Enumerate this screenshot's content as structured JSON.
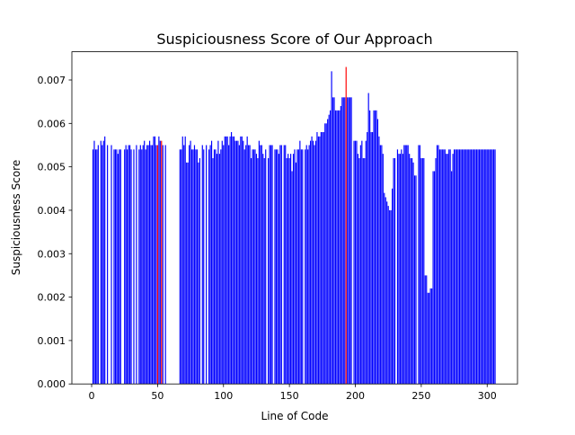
{
  "chart_data": {
    "type": "bar",
    "title": "Suspiciousness Score of Our Approach",
    "xlabel": "Line of Code",
    "ylabel": "Suspiciousness Score",
    "xlim": [
      -15,
      323
    ],
    "ylim": [
      0,
      0.00765
    ],
    "xticks": [
      0,
      50,
      100,
      150,
      200,
      250,
      300
    ],
    "xtick_labels": [
      "0",
      "50",
      "100",
      "150",
      "200",
      "250",
      "300"
    ],
    "yticks": [
      0,
      0.001,
      0.002,
      0.003,
      0.004,
      0.005,
      0.006,
      0.007
    ],
    "ytick_labels": [
      "0.000",
      "0.001",
      "0.002",
      "0.003",
      "0.004",
      "0.005",
      "0.006",
      "0.007"
    ],
    "bar_width": 0.8,
    "colors": {
      "normal": "#0000ff",
      "highlight": "#ff0000",
      "axis": "#000000"
    },
    "highlighted_lines": [
      50,
      53,
      193
    ],
    "x": [
      1,
      2,
      3,
      4,
      5,
      7,
      8,
      9,
      10,
      12,
      15,
      17,
      18,
      19,
      20,
      21,
      22,
      25,
      26,
      27,
      28,
      29,
      30,
      32,
      34,
      36,
      37,
      38,
      39,
      40,
      41,
      42,
      43,
      44,
      45,
      46,
      47,
      48,
      49,
      50,
      51,
      52,
      53,
      54,
      56,
      67,
      68,
      69,
      70,
      71,
      72,
      73,
      74,
      75,
      76,
      77,
      78,
      79,
      80,
      81,
      82,
      84,
      85,
      87,
      89,
      90,
      91,
      92,
      93,
      94,
      95,
      96,
      97,
      98,
      99,
      100,
      101,
      102,
      103,
      104,
      105,
      106,
      107,
      108,
      109,
      110,
      111,
      112,
      113,
      114,
      115,
      116,
      117,
      118,
      119,
      120,
      121,
      122,
      123,
      124,
      125,
      126,
      127,
      128,
      129,
      130,
      131,
      132,
      134,
      135,
      136,
      137,
      139,
      140,
      141,
      142,
      143,
      144,
      146,
      147,
      148,
      149,
      150,
      151,
      152,
      153,
      154,
      155,
      156,
      157,
      158,
      159,
      160,
      162,
      163,
      164,
      165,
      166,
      167,
      168,
      169,
      170,
      171,
      172,
      173,
      174,
      175,
      176,
      177,
      178,
      179,
      180,
      181,
      182,
      183,
      184,
      185,
      186,
      187,
      188,
      189,
      190,
      191,
      192,
      193,
      194,
      195,
      196,
      197,
      199,
      200,
      201,
      202,
      203,
      204,
      205,
      206,
      207,
      208,
      209,
      210,
      211,
      212,
      213,
      214,
      215,
      216,
      217,
      218,
      219,
      220,
      221,
      222,
      223,
      224,
      225,
      226,
      227,
      228,
      229,
      230,
      232,
      233,
      234,
      235,
      236,
      237,
      238,
      239,
      240,
      241,
      242,
      243,
      244,
      245,
      246,
      248,
      249,
      250,
      251,
      252,
      253,
      254,
      255,
      256,
      257,
      258,
      259,
      260,
      261,
      262,
      263,
      264,
      265,
      266,
      267,
      268,
      269,
      270,
      271,
      272,
      273,
      274,
      275,
      276,
      277,
      278,
      279,
      280,
      281,
      282,
      283,
      284,
      285,
      286,
      287,
      288,
      289,
      290,
      291,
      292,
      293,
      294,
      295,
      296,
      297,
      298,
      299,
      300,
      301,
      302,
      303,
      304,
      305,
      306
    ],
    "values": [
      0.0054,
      0.0056,
      0.0054,
      0.0054,
      0.0055,
      0.0056,
      0.0055,
      0.0056,
      0.0057,
      0.0055,
      0.0055,
      0.0054,
      0.0054,
      0.0054,
      0.0053,
      0.0054,
      0.0054,
      0.0054,
      0.0055,
      0.0054,
      0.0055,
      0.0055,
      0.0054,
      0.0054,
      0.0055,
      0.0054,
      0.0055,
      0.0054,
      0.0055,
      0.0056,
      0.0054,
      0.0055,
      0.0055,
      0.0056,
      0.0055,
      0.0055,
      0.0057,
      0.0057,
      0.0055,
      0.0055,
      0.0057,
      0.0056,
      0.0056,
      0.0055,
      0.0055,
      0.0054,
      0.0054,
      0.0057,
      0.0055,
      0.0057,
      0.0051,
      0.0051,
      0.0055,
      0.0056,
      0.0054,
      0.0054,
      0.0055,
      0.0054,
      0.0054,
      0.0051,
      0.0052,
      0.0055,
      0.0054,
      0.0055,
      0.0054,
      0.0055,
      0.0056,
      0.0052,
      0.0054,
      0.0054,
      0.0053,
      0.0056,
      0.0053,
      0.0054,
      0.0056,
      0.0055,
      0.0057,
      0.0057,
      0.0057,
      0.0055,
      0.0057,
      0.0058,
      0.0057,
      0.0057,
      0.0056,
      0.0056,
      0.0056,
      0.0055,
      0.0057,
      0.0057,
      0.0056,
      0.0054,
      0.0055,
      0.0057,
      0.0055,
      0.0055,
      0.0052,
      0.0054,
      0.0054,
      0.0054,
      0.0053,
      0.0052,
      0.0056,
      0.0055,
      0.0055,
      0.0053,
      0.0052,
      0.0054,
      0.0052,
      0.0055,
      0.0055,
      0.0055,
      0.0054,
      0.0054,
      0.0054,
      0.0053,
      0.0055,
      0.0055,
      0.0055,
      0.0055,
      0.0052,
      0.0053,
      0.0052,
      0.0053,
      0.0049,
      0.0053,
      0.0054,
      0.0051,
      0.0054,
      0.0054,
      0.0056,
      0.0054,
      0.0054,
      0.0054,
      0.0055,
      0.0054,
      0.0055,
      0.0056,
      0.0057,
      0.0056,
      0.0055,
      0.0056,
      0.0058,
      0.0057,
      0.0057,
      0.0058,
      0.0058,
      0.0058,
      0.006,
      0.006,
      0.0061,
      0.0062,
      0.0063,
      0.0072,
      0.0066,
      0.0066,
      0.0063,
      0.0063,
      0.0063,
      0.0063,
      0.0064,
      0.0066,
      0.0066,
      0.0066,
      0.0073,
      0.0066,
      0.0066,
      0.0066,
      0.0066,
      0.0056,
      0.0056,
      0.0056,
      0.0053,
      0.0052,
      0.0055,
      0.0056,
      0.0052,
      0.0052,
      0.0056,
      0.0058,
      0.0067,
      0.0063,
      0.0058,
      0.0058,
      0.0063,
      0.0063,
      0.0063,
      0.0061,
      0.0057,
      0.0055,
      0.0055,
      0.0053,
      0.0044,
      0.0043,
      0.0042,
      0.0041,
      0.004,
      0.004,
      0.0045,
      0.0052,
      0.0052,
      0.0054,
      0.0053,
      0.0053,
      0.0054,
      0.0053,
      0.0055,
      0.0055,
      0.0055,
      0.0055,
      0.0053,
      0.0052,
      0.0052,
      0.0051,
      0.0048,
      0.0048,
      0.0055,
      0.0055,
      0.0052,
      0.0052,
      0.0052,
      0.0025,
      0.0025,
      0.0021,
      0.0021,
      0.0022,
      0.0022,
      0.0049,
      0.0049,
      0.0052,
      0.0055,
      0.0055,
      0.0054,
      0.0054,
      0.0054,
      0.0054,
      0.0054,
      0.0053,
      0.0053,
      0.0054,
      0.0054,
      0.0049,
      0.0053,
      0.0054,
      0.0054,
      0.0054,
      0.0054,
      0.0054,
      0.0054,
      0.0054,
      0.0054,
      0.0054,
      0.0054,
      0.0054,
      0.0054,
      0.0054,
      0.0054,
      0.0054,
      0.0054,
      0.0054,
      0.0054,
      0.0054,
      0.0054,
      0.0054,
      0.0054,
      0.0054,
      0.0054,
      0.0054,
      0.0054,
      0.0054,
      0.0054,
      0.0054,
      0.0054,
      0.0054,
      0.0054
    ]
  }
}
